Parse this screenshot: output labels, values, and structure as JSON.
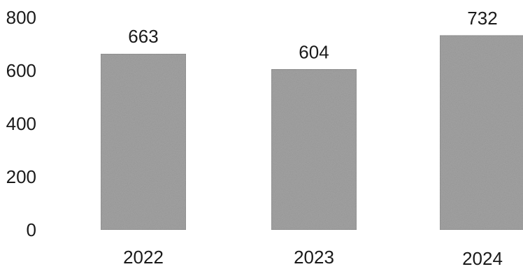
{
  "chart_data": {
    "type": "bar",
    "categories": [
      "2022",
      "2023",
      "2024"
    ],
    "values": [
      663,
      604,
      732
    ],
    "data_labels": [
      "663",
      "604",
      "732"
    ],
    "title": "",
    "xlabel": "",
    "ylabel": "",
    "ylim": [
      0,
      800
    ],
    "yticks": [
      0,
      200,
      400,
      600,
      800
    ],
    "ytick_labels": [
      "0",
      "200",
      "400",
      "600",
      "800"
    ],
    "grid": false,
    "legend": "none",
    "bar_color": "#a3a3a3",
    "bar_edge_color": "#8c8c8c"
  }
}
